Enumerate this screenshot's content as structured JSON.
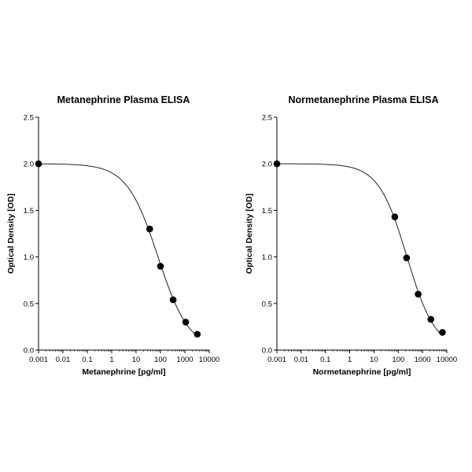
{
  "chart_data": [
    {
      "type": "scatter",
      "title": "Metanephrine Plasma ELISA",
      "xlabel": "Metanephrine [pg/ml]",
      "ylabel": "Optical Density [OD]",
      "x_scale": "log",
      "xlim": [
        0.001,
        10000
      ],
      "ylim": [
        0.0,
        2.5
      ],
      "x_ticks": [
        "0.001",
        "0.01",
        "0.1",
        "1",
        "10",
        "100",
        "1000",
        "10000"
      ],
      "y_ticks": [
        "0.0",
        "0.5",
        "1.0",
        "1.5",
        "2.0",
        "2.5"
      ],
      "grid": false,
      "has_fit_curve": true,
      "series": [
        {
          "x": [
            0.001,
            36,
            100,
            330,
            1080,
            3240
          ],
          "y": [
            2.0,
            1.3,
            0.9,
            0.54,
            0.3,
            0.17
          ]
        }
      ]
    },
    {
      "type": "scatter",
      "title": "Normetanephrine Plasma ELISA",
      "xlabel": "Normetanephrine [pg/ml]",
      "ylabel": "Optical Density [OD]",
      "x_scale": "log",
      "xlim": [
        0.001,
        10000
      ],
      "ylim": [
        0.0,
        2.5
      ],
      "x_ticks": [
        "0.001",
        "0.01",
        "0.1",
        "1",
        "10",
        "100",
        "1000",
        "10000"
      ],
      "y_ticks": [
        "0.0",
        "0.5",
        "1.0",
        "1.5",
        "2.0",
        "2.5"
      ],
      "grid": false,
      "has_fit_curve": true,
      "series": [
        {
          "x": [
            0.001,
            72,
            220,
            660,
            2200,
            6600
          ],
          "y": [
            2.0,
            1.43,
            0.99,
            0.6,
            0.33,
            0.19
          ]
        }
      ]
    }
  ]
}
